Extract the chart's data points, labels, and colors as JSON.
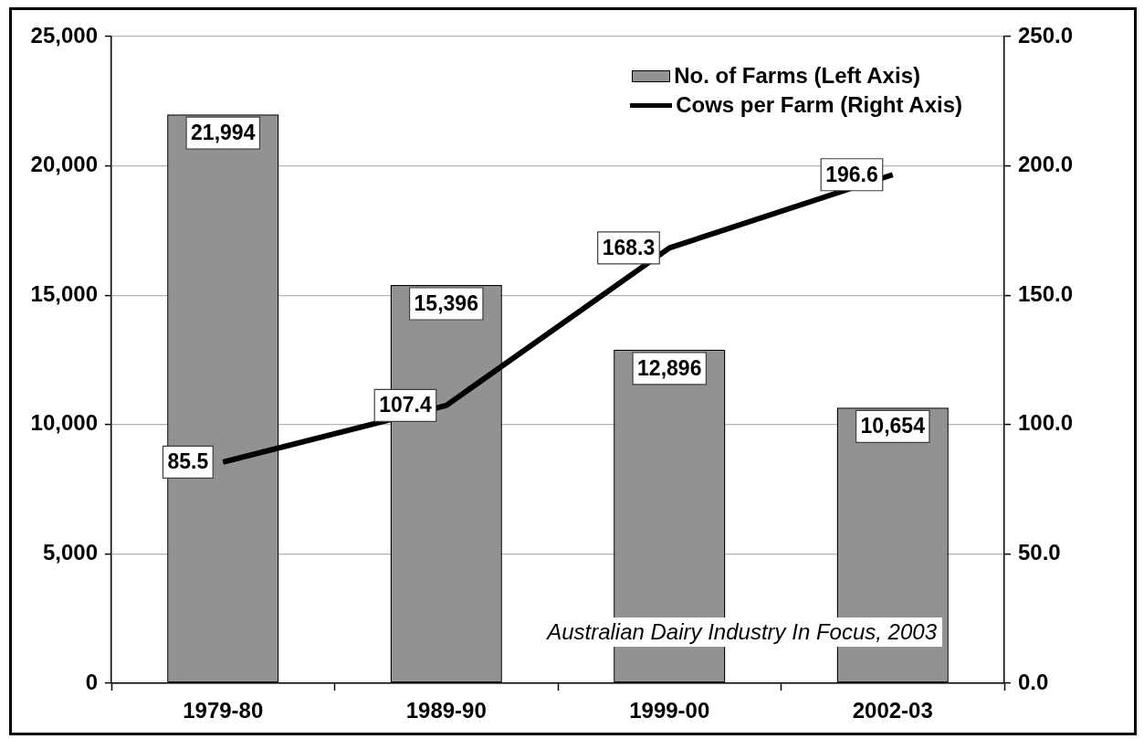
{
  "chart_data": {
    "type": "bar",
    "categories": [
      "1979-80",
      "1989-90",
      "1999-00",
      "2002-03"
    ],
    "series": [
      {
        "name": "No. of Farms (Left Axis)",
        "color": "#929292",
        "values": [
          21994,
          15396,
          12896,
          10654
        ],
        "value_labels": [
          "21,994",
          "15,396",
          "12,896",
          "10,654"
        ]
      },
      {
        "name": "Cows per Farm (Right Axis)",
        "type": "line",
        "axis": "y2",
        "color": "#000000",
        "values": [
          85.5,
          107.4,
          168.3,
          196.6
        ],
        "value_labels": [
          "85.5",
          "107.4",
          "168.3",
          "196.6"
        ]
      }
    ],
    "ylim": [
      0,
      25000
    ],
    "yticks": [
      0,
      {
        "value": 5000,
        "label": "5,000"
      },
      {
        "value": 10000,
        "label": "10,000"
      },
      {
        "value": 15000,
        "label": "15,000"
      },
      {
        "value": 20000,
        "label": "20,000"
      },
      {
        "value": 25000,
        "label": "25,000"
      }
    ],
    "y2lim": [
      0,
      250
    ],
    "y2ticks": [
      {
        "value": 0,
        "label": "0.0"
      },
      {
        "value": 50,
        "label": "50.0"
      },
      {
        "value": 100,
        "label": "100.0"
      },
      {
        "value": 150,
        "label": "150.0"
      },
      {
        "value": 200,
        "label": "200.0"
      },
      {
        "value": 250,
        "label": "250.0"
      }
    ],
    "grid": "y",
    "legend": "top right",
    "marker": "none",
    "line_style": "solid",
    "annotations": [
      "Australian Dairy Industry In Focus, 2003"
    ]
  }
}
